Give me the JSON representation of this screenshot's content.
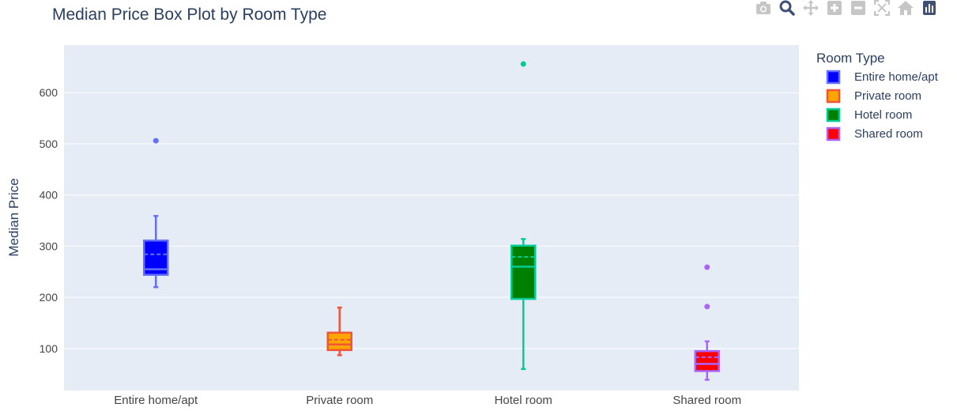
{
  "chart_data": {
    "type": "box",
    "title": "Median Price Box Plot by Room Type",
    "xlabel": "",
    "ylabel": "Median Price",
    "ylim": [
      18,
      693
    ],
    "yticks": [
      100,
      200,
      300,
      400,
      500,
      600
    ],
    "grid": true,
    "legend": {
      "title": "Room Type",
      "placement": "right"
    },
    "categories": [
      "Entire home/apt",
      "Private room",
      "Hotel room",
      "Shared room"
    ],
    "series": [
      {
        "name": "Entire home/apt",
        "fill_color": "#0000ff",
        "line_color": "#636efa",
        "lower_fence": 220,
        "q1": 244,
        "median": 255,
        "q3": 311,
        "upper_fence": 359,
        "mean": 284,
        "outliers": [
          506
        ]
      },
      {
        "name": "Private room",
        "fill_color": "#ffa500",
        "line_color": "#ef553b",
        "lower_fence": 87,
        "q1": 97,
        "median": 108,
        "q3": 131,
        "upper_fence": 180,
        "mean": 117,
        "outliers": []
      },
      {
        "name": "Hotel room",
        "fill_color": "#008000",
        "line_color": "#00cc96",
        "lower_fence": 60,
        "q1": 197,
        "median": 260,
        "q3": 301,
        "upper_fence": 314,
        "mean": 279,
        "outliers": [
          656
        ]
      },
      {
        "name": "Shared room",
        "fill_color": "#ff0000",
        "line_color": "#ab63fa",
        "lower_fence": 39,
        "q1": 56,
        "median": 70,
        "q3": 95,
        "upper_fence": 114,
        "mean": 83,
        "outliers": [
          182,
          259
        ]
      }
    ]
  },
  "colors": {
    "plot_background": "#e5ecf6",
    "grid": "#ffffff",
    "text": "#2a3f5f",
    "tick_text": "#444444",
    "modebar_icon": "#c6c6c6",
    "modebar_logo": "#3f4f75"
  },
  "modebar": [
    {
      "name": "camera-icon"
    },
    {
      "name": "zoom-icon"
    },
    {
      "name": "pan-icon"
    },
    {
      "name": "zoom-in-icon"
    },
    {
      "name": "zoom-out-icon"
    },
    {
      "name": "autoscale-icon"
    },
    {
      "name": "reset-axes-icon"
    },
    {
      "name": "plotly-logo-icon"
    }
  ]
}
